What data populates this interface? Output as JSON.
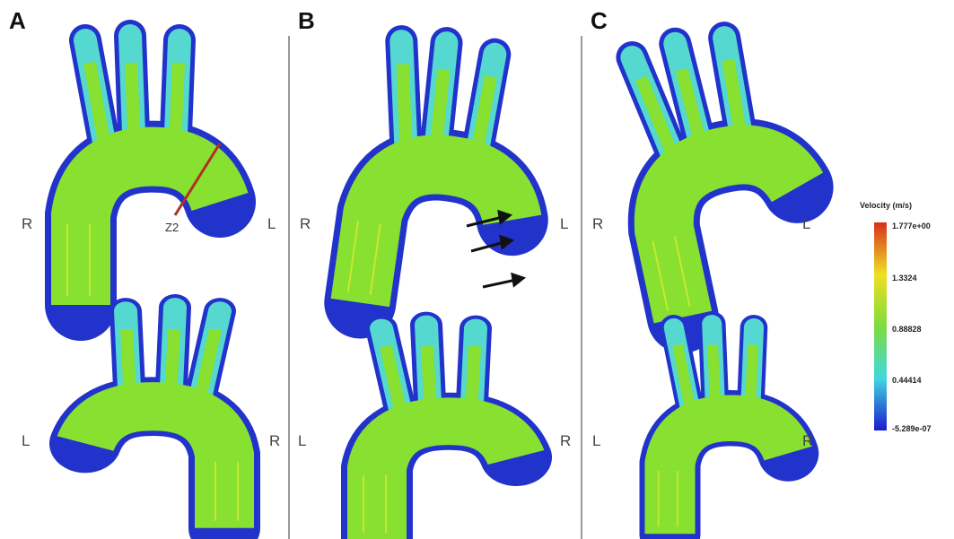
{
  "panels": [
    {
      "label": "A",
      "top": {
        "left": "R",
        "right": "L"
      },
      "bottom": {
        "left": "L",
        "right": "R"
      },
      "annotation": "Z2"
    },
    {
      "label": "B",
      "top": {
        "left": "R",
        "right": "L"
      },
      "bottom": {
        "left": "L",
        "right": "R"
      }
    },
    {
      "label": "C",
      "top": {
        "left": "R",
        "right": "L"
      },
      "bottom": {
        "left": "L",
        "right": "R"
      }
    }
  ],
  "colorbar": {
    "title": "Velocity (m/s)",
    "ticks": [
      "1.777e+00",
      "1.3324",
      "0.88828",
      "0.44414",
      "-5.289e-07"
    ]
  }
}
